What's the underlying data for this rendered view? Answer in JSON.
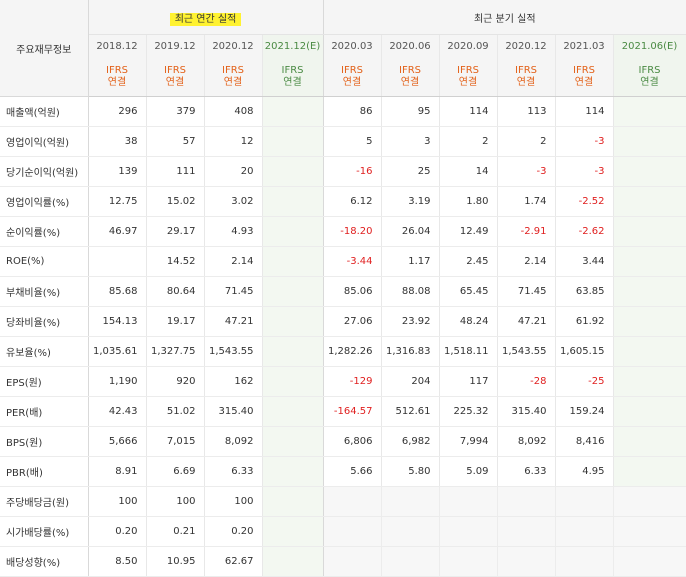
{
  "header": {
    "row_label": "주요재무정보",
    "annual_title": "최근 연간 실적",
    "quarterly_title": "최근 분기 실적",
    "annual_periods": [
      "2018.12",
      "2019.12",
      "2020.12",
      "2021.12(E)"
    ],
    "quarterly_periods": [
      "2020.03",
      "2020.06",
      "2020.09",
      "2020.12",
      "2021.03",
      "2021.06(E)"
    ],
    "ifrs_top": "IFRS",
    "ifrs_bottom": "연결"
  },
  "rows": [
    {
      "label": "매출액(억원)",
      "annual": [
        "296",
        "379",
        "408",
        ""
      ],
      "quarterly": [
        "86",
        "95",
        "114",
        "113",
        "114",
        ""
      ]
    },
    {
      "label": "영업이익(억원)",
      "annual": [
        "38",
        "57",
        "12",
        ""
      ],
      "quarterly": [
        "5",
        "3",
        "2",
        "2",
        "-3",
        ""
      ]
    },
    {
      "label": "당기순이익(억원)",
      "annual": [
        "139",
        "111",
        "20",
        ""
      ],
      "quarterly": [
        "-16",
        "25",
        "14",
        "-3",
        "-3",
        ""
      ]
    },
    {
      "label": "영업이익률(%)",
      "annual": [
        "12.75",
        "15.02",
        "3.02",
        ""
      ],
      "quarterly": [
        "6.12",
        "3.19",
        "1.80",
        "1.74",
        "-2.52",
        ""
      ]
    },
    {
      "label": "순이익률(%)",
      "annual": [
        "46.97",
        "29.17",
        "4.93",
        ""
      ],
      "quarterly": [
        "-18.20",
        "26.04",
        "12.49",
        "-2.91",
        "-2.62",
        ""
      ]
    },
    {
      "label": "ROE(%)",
      "annual": [
        "",
        "14.52",
        "2.14",
        ""
      ],
      "quarterly": [
        "-3.44",
        "1.17",
        "2.45",
        "2.14",
        "3.44",
        ""
      ]
    },
    {
      "label": "부채비율(%)",
      "annual": [
        "85.68",
        "80.64",
        "71.45",
        ""
      ],
      "quarterly": [
        "85.06",
        "88.08",
        "65.45",
        "71.45",
        "63.85",
        ""
      ]
    },
    {
      "label": "당좌비율(%)",
      "annual": [
        "154.13",
        "19.17",
        "47.21",
        ""
      ],
      "quarterly": [
        "27.06",
        "23.92",
        "48.24",
        "47.21",
        "61.92",
        ""
      ]
    },
    {
      "label": "유보율(%)",
      "annual": [
        "1,035.61",
        "1,327.75",
        "1,543.55",
        ""
      ],
      "quarterly": [
        "1,282.26",
        "1,316.83",
        "1,518.11",
        "1,543.55",
        "1,605.15",
        ""
      ]
    },
    {
      "label": "EPS(원)",
      "annual": [
        "1,190",
        "920",
        "162",
        ""
      ],
      "quarterly": [
        "-129",
        "204",
        "117",
        "-28",
        "-25",
        ""
      ]
    },
    {
      "label": "PER(배)",
      "annual": [
        "42.43",
        "51.02",
        "315.40",
        ""
      ],
      "quarterly": [
        "-164.57",
        "512.61",
        "225.32",
        "315.40",
        "159.24",
        ""
      ]
    },
    {
      "label": "BPS(원)",
      "annual": [
        "5,666",
        "7,015",
        "8,092",
        ""
      ],
      "quarterly": [
        "6,806",
        "6,982",
        "7,994",
        "8,092",
        "8,416",
        ""
      ]
    },
    {
      "label": "PBR(배)",
      "annual": [
        "8.91",
        "6.69",
        "6.33",
        ""
      ],
      "quarterly": [
        "5.66",
        "5.80",
        "5.09",
        "6.33",
        "4.95",
        ""
      ]
    },
    {
      "label": "주당배당금(원)",
      "annual": [
        "100",
        "100",
        "100",
        ""
      ],
      "quarterly": null
    },
    {
      "label": "시가배당률(%)",
      "annual": [
        "0.20",
        "0.21",
        "0.20",
        ""
      ],
      "quarterly": null
    },
    {
      "label": "배당성향(%)",
      "annual": [
        "8.50",
        "10.95",
        "62.67",
        ""
      ],
      "quarterly": null
    }
  ]
}
